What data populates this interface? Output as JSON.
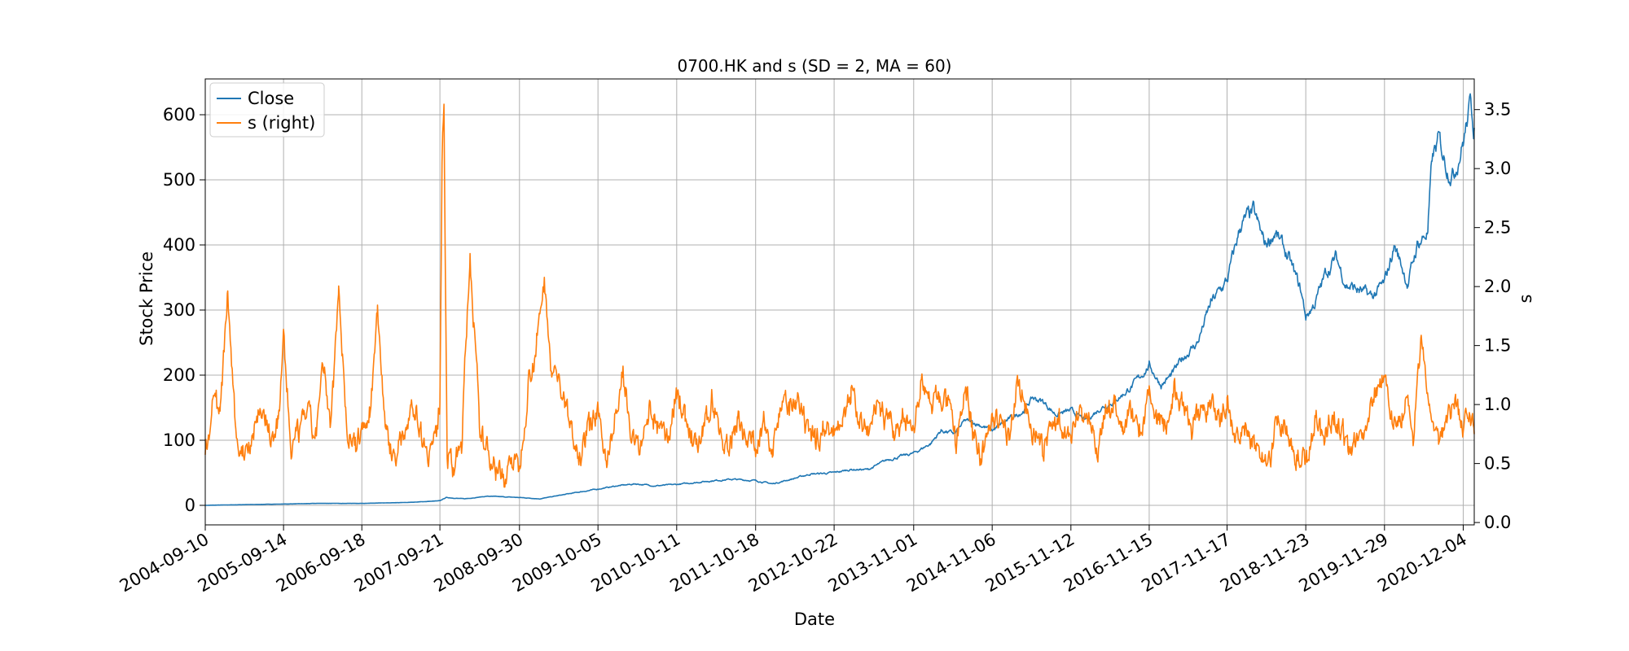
{
  "chart_data": {
    "type": "line",
    "title": "0700.HK and s (SD = 2, MA = 60)",
    "xlabel": "Date",
    "ylabel": "Stock Price",
    "ylabel_right": "s",
    "grid": true,
    "legend_position": "top-left",
    "x_ticks": [
      "2004-09-10",
      "2005-09-14",
      "2006-09-18",
      "2007-09-21",
      "2008-09-30",
      "2009-10-05",
      "2010-10-11",
      "2011-10-18",
      "2012-10-22",
      "2013-11-01",
      "2014-11-06",
      "2015-11-12",
      "2016-11-15",
      "2017-11-17",
      "2018-11-23",
      "2019-11-29",
      "2020-12-04"
    ],
    "xlim": [
      "2004-09-10",
      "2021-01-25"
    ],
    "ylim": [
      -30,
      655
    ],
    "y_ticks": [
      0,
      100,
      200,
      300,
      400,
      500,
      600
    ],
    "ylim_right": [
      -0.02,
      3.76
    ],
    "y_ticks_right": [
      "0.0",
      "0.5",
      "1.0",
      "1.5",
      "2.0",
      "2.5",
      "3.0",
      "3.5"
    ],
    "series": [
      {
        "name": "Close",
        "axis": "left",
        "color": "#1f77b4",
        "x": [
          "2004-09-10",
          "2005-03-01",
          "2005-09-14",
          "2006-03-01",
          "2006-09-18",
          "2007-03-01",
          "2007-06-01",
          "2007-09-21",
          "2007-10-20",
          "2008-01-15",
          "2008-05-01",
          "2008-09-30",
          "2009-01-05",
          "2009-04-01",
          "2009-07-01",
          "2009-10-05",
          "2010-01-05",
          "2010-04-01",
          "2010-07-01",
          "2010-10-11",
          "2011-01-05",
          "2011-04-01",
          "2011-07-01",
          "2011-10-18",
          "2012-01-05",
          "2012-04-01",
          "2012-07-01",
          "2012-10-22",
          "2013-01-05",
          "2013-04-01",
          "2013-07-01",
          "2013-11-01",
          "2014-01-20",
          "2014-03-10",
          "2014-05-15",
          "2014-07-01",
          "2014-09-01",
          "2014-11-06",
          "2015-01-15",
          "2015-04-01",
          "2015-05-15",
          "2015-07-01",
          "2015-09-01",
          "2015-11-12",
          "2016-01-20",
          "2016-04-01",
          "2016-06-01",
          "2016-08-01",
          "2016-09-15",
          "2016-11-15",
          "2017-01-10",
          "2017-03-01",
          "2017-05-01",
          "2017-07-01",
          "2017-09-01",
          "2017-11-17",
          "2018-01-20",
          "2018-03-20",
          "2018-05-15",
          "2018-07-01",
          "2018-09-01",
          "2018-10-30",
          "2018-11-23",
          "2019-01-05",
          "2019-03-01",
          "2019-04-15",
          "2019-06-01",
          "2019-08-01",
          "2019-10-01",
          "2019-11-29",
          "2020-01-15",
          "2020-03-19",
          "2020-05-01",
          "2020-06-20",
          "2020-07-10",
          "2020-08-10",
          "2020-09-20",
          "2020-10-20",
          "2020-12-04",
          "2021-01-10",
          "2021-01-25"
        ],
        "values": [
          0,
          1,
          2,
          3,
          3,
          4,
          5,
          7,
          12,
          10,
          14,
          12,
          10,
          15,
          20,
          25,
          30,
          33,
          30,
          32,
          35,
          38,
          40,
          38,
          33,
          40,
          48,
          50,
          55,
          55,
          70,
          80,
          95,
          115,
          110,
          130,
          125,
          115,
          130,
          145,
          165,
          160,
          140,
          145,
          130,
          150,
          160,
          175,
          190,
          215,
          185,
          200,
          230,
          250,
          310,
          345,
          430,
          450,
          400,
          420,
          380,
          330,
          290,
          310,
          360,
          380,
          340,
          330,
          320,
          340,
          400,
          340,
          400,
          420,
          530,
          560,
          520,
          510,
          560,
          620,
          580
        ]
      },
      {
        "name": "s (right)",
        "axis": "right",
        "color": "#ff7f0e",
        "x": [
          "2004-09-10",
          "2004-10-20",
          "2004-11-20",
          "2004-12-25",
          "2005-02-01",
          "2005-03-10",
          "2005-04-20",
          "2005-06-01",
          "2005-07-10",
          "2005-08-20",
          "2005-09-14",
          "2005-10-20",
          "2005-11-25",
          "2006-01-01",
          "2006-02-10",
          "2006-03-20",
          "2006-04-25",
          "2006-06-01",
          "2006-07-10",
          "2006-08-20",
          "2006-09-18",
          "2006-10-25",
          "2006-12-01",
          "2007-01-10",
          "2007-02-20",
          "2007-03-30",
          "2007-05-10",
          "2007-06-20",
          "2007-07-30",
          "2007-09-05",
          "2007-09-21",
          "2007-10-01",
          "2007-10-10",
          "2007-10-25",
          "2007-11-20",
          "2008-01-01",
          "2008-02-10",
          "2008-03-25",
          "2008-05-01",
          "2008-06-10",
          "2008-07-20",
          "2008-08-20",
          "2008-09-30",
          "2008-11-10",
          "2008-12-20",
          "2009-01-25",
          "2009-03-01",
          "2009-04-05",
          "2009-05-01",
          "2009-06-01",
          "2009-07-10",
          "2009-08-20",
          "2009-10-05",
          "2009-11-15",
          "2009-12-20",
          "2010-02-01",
          "2010-03-15",
          "2010-04-25",
          "2010-06-05",
          "2010-07-15",
          "2010-08-25",
          "2010-10-11",
          "2010-11-20",
          "2011-01-01",
          "2011-02-10",
          "2011-03-25",
          "2011-05-05",
          "2011-06-15",
          "2011-07-25",
          "2011-09-01",
          "2011-10-18",
          "2011-11-25",
          "2012-01-05",
          "2012-02-15",
          "2012-03-25",
          "2012-05-05",
          "2012-06-15",
          "2012-07-25",
          "2012-09-01",
          "2012-10-22",
          "2012-12-01",
          "2013-01-10",
          "2013-02-20",
          "2013-04-01",
          "2013-05-10",
          "2013-06-20",
          "2013-08-01",
          "2013-09-10",
          "2013-11-01",
          "2013-12-10",
          "2014-01-20",
          "2014-03-01",
          "2014-04-10",
          "2014-05-20",
          "2014-07-01",
          "2014-08-10",
          "2014-09-20",
          "2014-11-06",
          "2014-12-15",
          "2015-01-25",
          "2015-03-05",
          "2015-04-15",
          "2015-05-25",
          "2015-07-01",
          "2015-08-10",
          "2015-09-20",
          "2015-11-12",
          "2015-12-20",
          "2016-02-01",
          "2016-03-15",
          "2016-04-25",
          "2016-06-05",
          "2016-07-15",
          "2016-08-25",
          "2016-10-05",
          "2016-11-15",
          "2016-12-20",
          "2017-02-01",
          "2017-03-15",
          "2017-04-25",
          "2017-06-05",
          "2017-07-15",
          "2017-08-25",
          "2017-10-05",
          "2017-11-17",
          "2017-12-25",
          "2018-02-05",
          "2018-03-15",
          "2018-04-25",
          "2018-06-05",
          "2018-07-15",
          "2018-08-25",
          "2018-10-05",
          "2018-11-23",
          "2019-01-05",
          "2019-02-15",
          "2019-03-25",
          "2019-05-05",
          "2019-06-15",
          "2019-07-25",
          "2019-09-01",
          "2019-10-15",
          "2019-11-29",
          "2020-01-10",
          "2020-02-20",
          "2020-03-25",
          "2020-04-15",
          "2020-05-20",
          "2020-07-01",
          "2020-08-10",
          "2020-09-20",
          "2020-10-30",
          "2020-12-04",
          "2020-12-30",
          "2021-01-25"
        ],
        "values": [
          0.55,
          1.15,
          0.9,
          1.95,
          0.7,
          0.6,
          0.75,
          1.0,
          0.7,
          0.85,
          1.55,
          0.6,
          0.75,
          0.95,
          0.7,
          1.3,
          0.8,
          2.05,
          0.75,
          0.65,
          0.8,
          0.9,
          1.8,
          0.75,
          0.55,
          0.7,
          1.05,
          0.8,
          0.6,
          0.75,
          1.05,
          3.05,
          3.6,
          0.6,
          0.45,
          0.65,
          2.3,
          0.8,
          0.6,
          0.5,
          0.35,
          0.55,
          0.45,
          1.2,
          1.5,
          2.05,
          1.3,
          1.2,
          1.0,
          0.8,
          0.6,
          0.8,
          0.9,
          0.55,
          0.8,
          1.25,
          0.7,
          0.6,
          0.95,
          0.8,
          0.7,
          1.1,
          0.9,
          0.65,
          0.7,
          1.05,
          0.75,
          0.6,
          0.9,
          0.75,
          0.65,
          0.8,
          0.7,
          1.0,
          0.95,
          1.0,
          0.75,
          0.7,
          0.8,
          0.75,
          0.95,
          1.1,
          0.85,
          0.7,
          1.0,
          0.9,
          0.75,
          0.85,
          0.8,
          1.25,
          0.95,
          1.1,
          1.0,
          0.65,
          1.15,
          0.75,
          0.55,
          0.9,
          0.85,
          0.7,
          1.25,
          0.95,
          0.75,
          0.6,
          0.8,
          0.9,
          0.7,
          1.0,
          0.85,
          0.6,
          0.9,
          1.05,
          0.8,
          0.95,
          0.75,
          1.15,
          0.9,
          0.8,
          1.1,
          0.95,
          0.8,
          0.9,
          1.0,
          0.85,
          0.95,
          0.7,
          0.8,
          0.65,
          0.6,
          0.55,
          0.9,
          0.8,
          0.6,
          0.5,
          0.85,
          0.7,
          0.9,
          0.8,
          0.6,
          0.7,
          0.75,
          1.15,
          1.25,
          0.85,
          0.9,
          1.0,
          0.65,
          1.55,
          0.9,
          0.7,
          0.95,
          1.05,
          0.8,
          0.95,
          0.75
        ]
      }
    ]
  }
}
